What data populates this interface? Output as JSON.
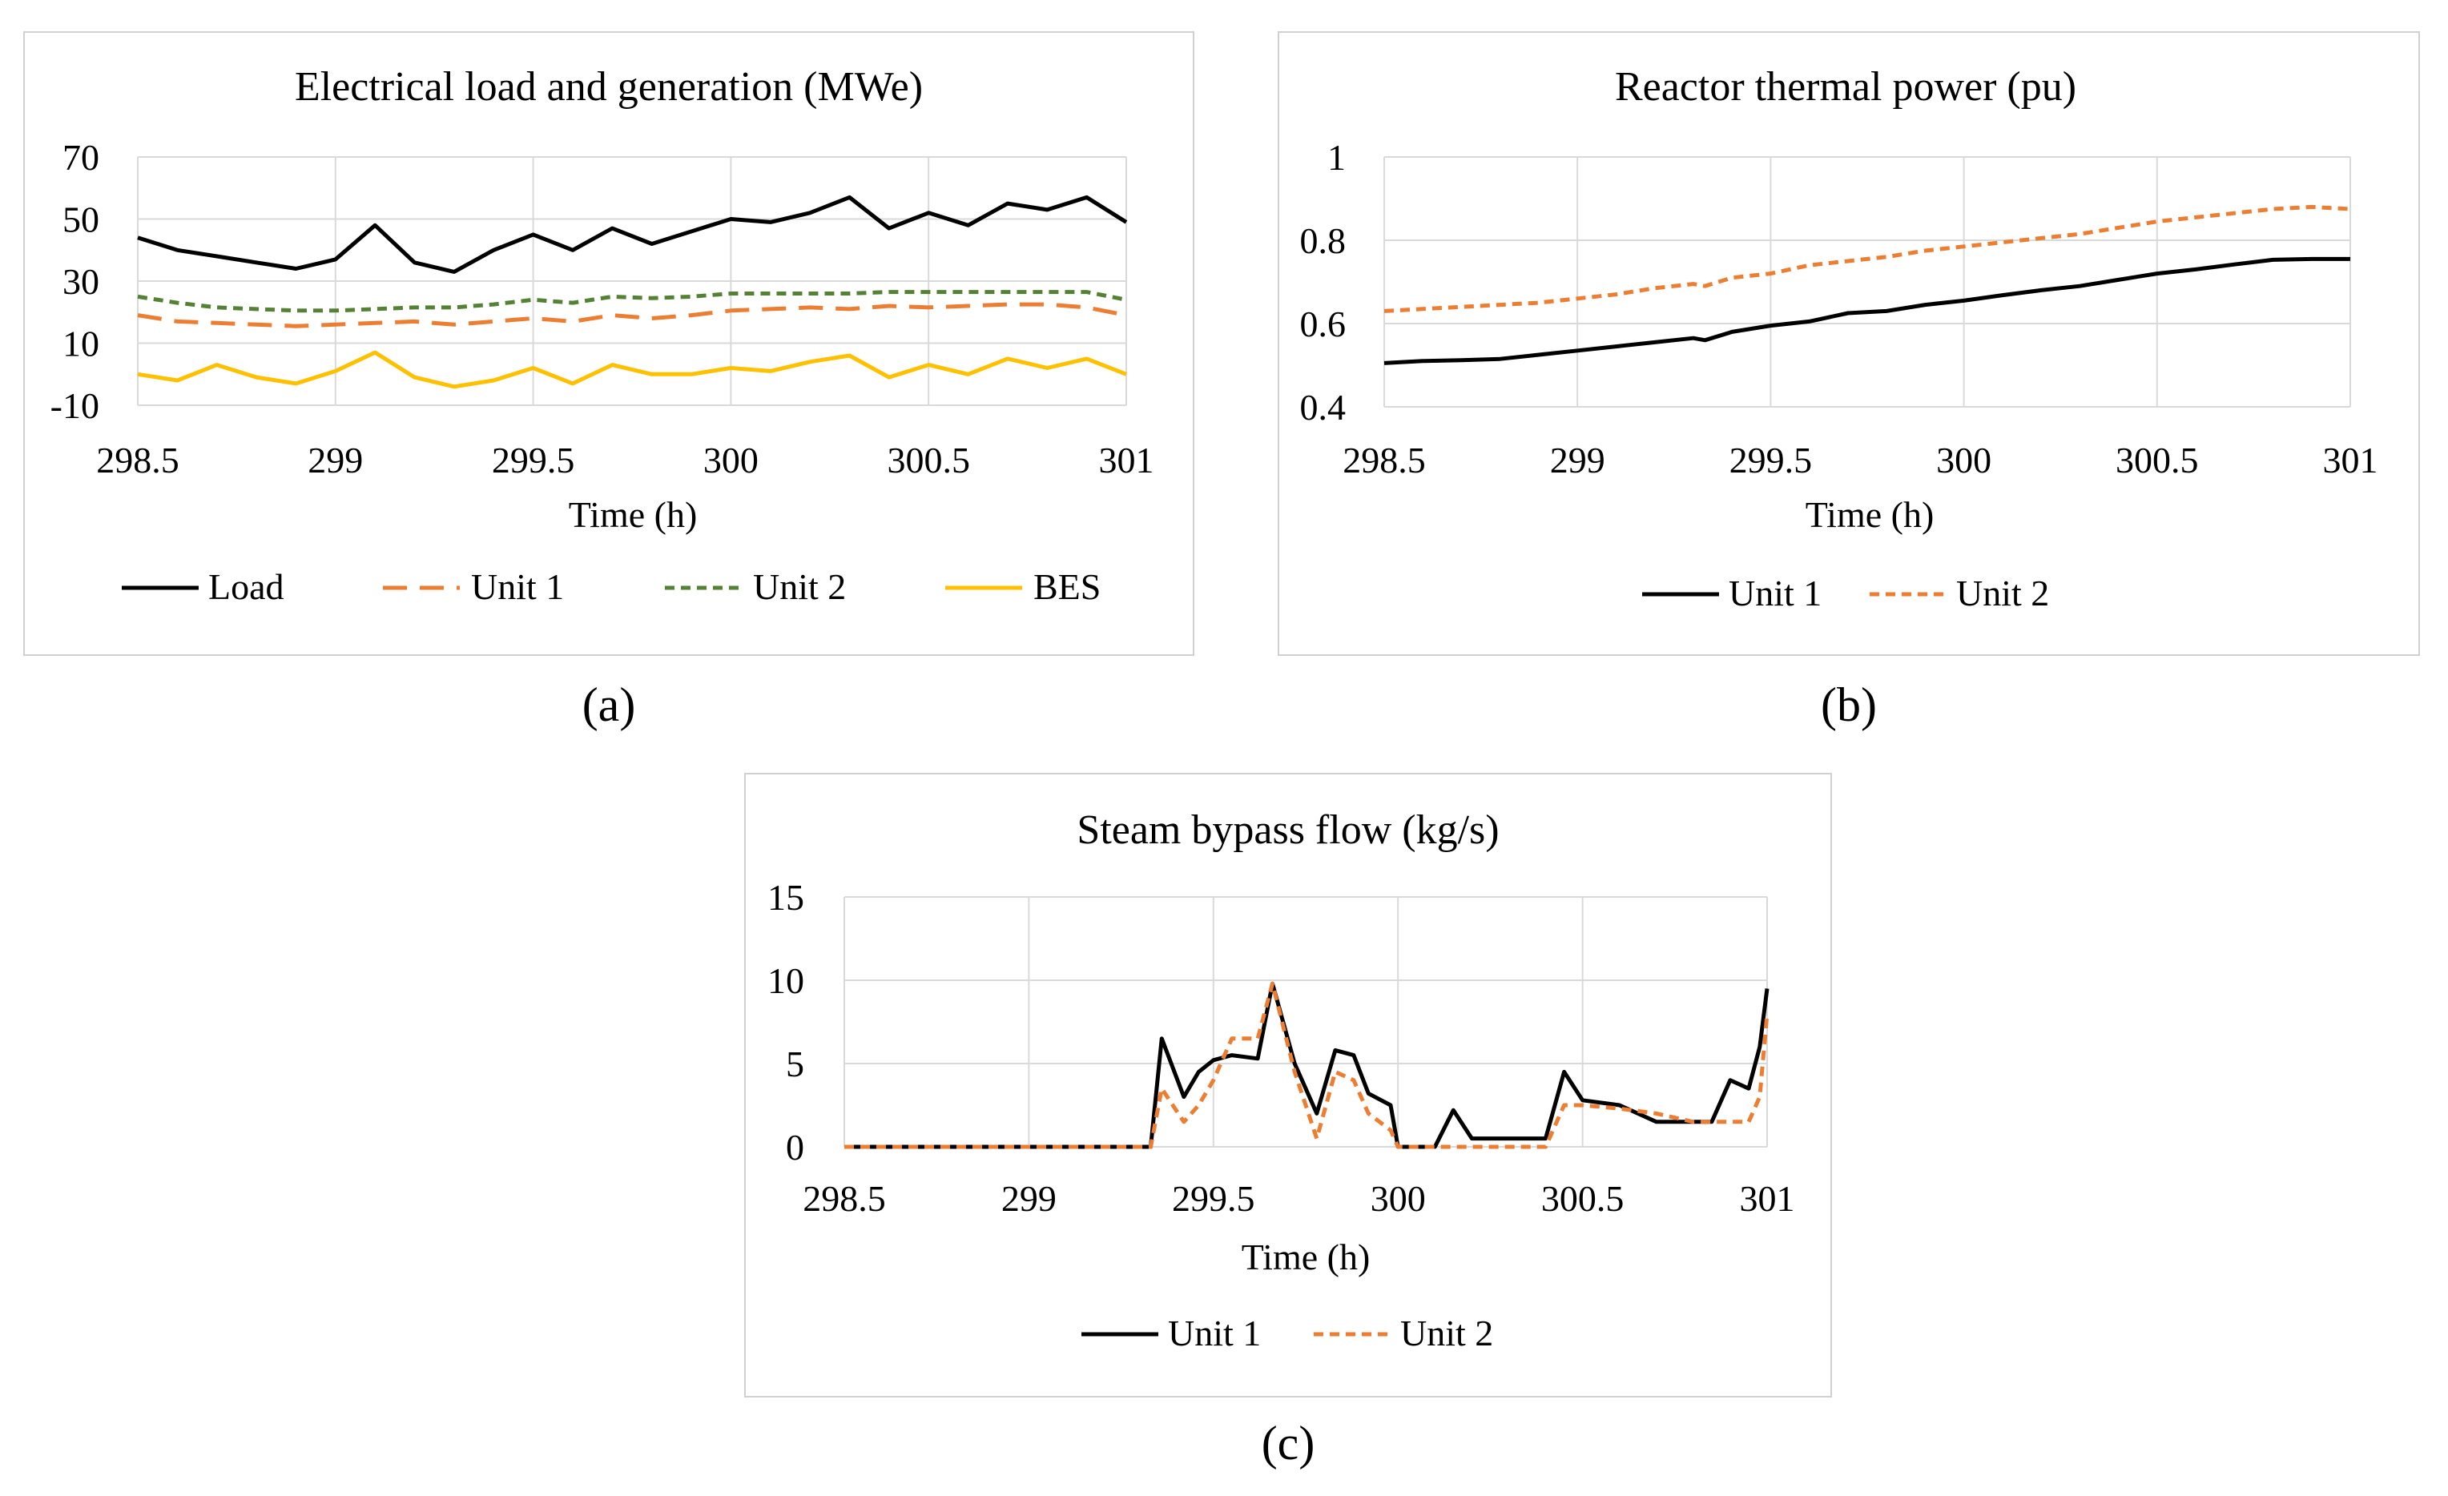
{
  "chart_data": [
    {
      "type": "line",
      "title": "Electrical load and generation (MWe)",
      "xlabel": "Time (h)",
      "ylabel": "",
      "xlim": [
        298.5,
        301
      ],
      "ylim": [
        -10,
        70
      ],
      "xticks": [
        "298.5",
        "299",
        "299.5",
        "300",
        "300.5",
        "301"
      ],
      "yticks": [
        "-10",
        "10",
        "30",
        "50",
        "70"
      ],
      "caption": "(a)",
      "x": [
        298.5,
        298.6,
        298.7,
        298.8,
        298.9,
        299.0,
        299.1,
        299.2,
        299.3,
        299.4,
        299.5,
        299.6,
        299.7,
        299.8,
        299.9,
        300.0,
        300.1,
        300.2,
        300.3,
        300.4,
        300.5,
        300.6,
        300.7,
        300.8,
        300.9,
        301.0
      ],
      "series": [
        {
          "name": "Load",
          "color": "#000000",
          "dash": "solid",
          "values": [
            44,
            40,
            38,
            36,
            34,
            37,
            48,
            36,
            33,
            40,
            45,
            40,
            47,
            42,
            46,
            50,
            49,
            52,
            57,
            47,
            52,
            48,
            55,
            53,
            57,
            49
          ]
        },
        {
          "name": "Unit 1",
          "color": "#ED7D31",
          "dash": "long",
          "values": [
            19,
            17,
            16.5,
            16,
            15.5,
            16,
            16.5,
            17,
            16,
            17,
            18,
            17,
            19,
            18,
            19,
            20.5,
            21,
            21.5,
            21,
            22,
            21.5,
            22,
            22.5,
            22.5,
            21.5,
            19
          ]
        },
        {
          "name": "Unit 2",
          "color": "#548235",
          "dash": "short",
          "values": [
            25,
            23,
            21.5,
            21,
            20.5,
            20.5,
            21,
            21.5,
            21.5,
            22.5,
            24,
            23,
            25,
            24.5,
            25,
            26,
            26,
            26,
            26,
            26.5,
            26.5,
            26.5,
            26.5,
            26.5,
            26.5,
            24
          ]
        },
        {
          "name": "BES",
          "color": "#FFC000",
          "dash": "solid",
          "values": [
            0,
            -2,
            3,
            -1,
            -3,
            1,
            7,
            -1,
            -4,
            -2,
            2,
            -3,
            3,
            0,
            0,
            2,
            1,
            4,
            6,
            -1,
            3,
            0,
            5,
            2,
            5,
            0
          ]
        }
      ]
    },
    {
      "type": "line",
      "title": "Reactor thermal power (pu)",
      "xlabel": "Time (h)",
      "ylabel": "",
      "xlim": [
        298.5,
        301
      ],
      "ylim": [
        0.4,
        1
      ],
      "xticks": [
        "298.5",
        "299",
        "299.5",
        "300",
        "300.5",
        "301"
      ],
      "yticks": [
        "0.4",
        "0.6",
        "0.8",
        "1"
      ],
      "caption": "(b)",
      "x": [
        298.5,
        298.6,
        298.7,
        298.8,
        298.9,
        299.0,
        299.1,
        299.2,
        299.3,
        299.33,
        299.4,
        299.5,
        299.6,
        299.7,
        299.8,
        299.9,
        300.0,
        300.1,
        300.2,
        300.3,
        300.4,
        300.5,
        300.6,
        300.7,
        300.8,
        300.9,
        301.0
      ],
      "series": [
        {
          "name": "Unit 1",
          "color": "#000000",
          "dash": "solid",
          "values": [
            0.505,
            0.51,
            0.512,
            0.515,
            0.525,
            0.535,
            0.545,
            0.555,
            0.565,
            0.56,
            0.58,
            0.595,
            0.605,
            0.625,
            0.63,
            0.645,
            0.655,
            0.668,
            0.68,
            0.69,
            0.705,
            0.72,
            0.73,
            0.742,
            0.753,
            0.755,
            0.755
          ]
        },
        {
          "name": "Unit 2",
          "color": "#ED7D31",
          "dash": "short",
          "values": [
            0.63,
            0.635,
            0.64,
            0.645,
            0.65,
            0.66,
            0.67,
            0.685,
            0.695,
            0.69,
            0.71,
            0.72,
            0.74,
            0.75,
            0.76,
            0.775,
            0.785,
            0.795,
            0.805,
            0.815,
            0.83,
            0.845,
            0.855,
            0.865,
            0.875,
            0.88,
            0.875
          ]
        }
      ]
    },
    {
      "type": "line",
      "title": "Steam bypass flow (kg/s)",
      "xlabel": "Time (h)",
      "ylabel": "",
      "xlim": [
        298.5,
        301
      ],
      "ylim": [
        0,
        15
      ],
      "xticks": [
        "298.5",
        "299",
        "299.5",
        "300",
        "300.5",
        "301"
      ],
      "yticks": [
        "0",
        "5",
        "10",
        "15"
      ],
      "caption": "(c)",
      "x": [
        298.5,
        299.0,
        299.3,
        299.33,
        299.36,
        299.42,
        299.46,
        299.5,
        299.55,
        299.62,
        299.66,
        299.72,
        299.78,
        299.83,
        299.88,
        299.92,
        299.98,
        300.0,
        300.05,
        300.1,
        300.15,
        300.2,
        300.3,
        300.4,
        300.45,
        300.5,
        300.6,
        300.7,
        300.8,
        300.85,
        300.9,
        300.95,
        300.98,
        301.0
      ],
      "series": [
        {
          "name": "Unit 1",
          "color": "#000000",
          "dash": "solid",
          "values": [
            0,
            0,
            0,
            0,
            6.5,
            3,
            4.5,
            5.2,
            5.5,
            5.3,
            9.8,
            5.0,
            2.0,
            5.8,
            5.5,
            3.2,
            2.5,
            0,
            0,
            0,
            2.2,
            0.5,
            0.5,
            0.5,
            4.5,
            2.8,
            2.5,
            1.5,
            1.5,
            1.5,
            4.0,
            3.5,
            6.0,
            9.5
          ]
        },
        {
          "name": "Unit 2",
          "color": "#ED7D31",
          "dash": "short",
          "values": [
            0,
            0,
            0,
            0,
            3.5,
            1.5,
            2.5,
            4.0,
            6.5,
            6.5,
            9.8,
            4.5,
            0.5,
            4.5,
            4.0,
            2.0,
            1.0,
            0,
            0,
            0,
            0,
            0,
            0,
            0,
            2.5,
            2.5,
            2.3,
            2.0,
            1.5,
            1.5,
            1.5,
            1.5,
            3.0,
            8.0
          ]
        }
      ]
    }
  ]
}
